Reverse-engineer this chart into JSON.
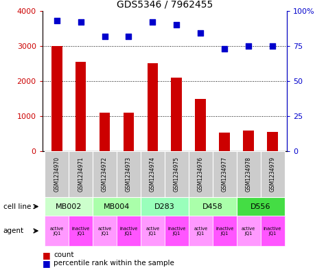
{
  "title": "GDS5346 / 7962455",
  "gsm_labels": [
    "GSM1234970",
    "GSM1234971",
    "GSM1234972",
    "GSM1234973",
    "GSM1234974",
    "GSM1234975",
    "GSM1234976",
    "GSM1234977",
    "GSM1234978",
    "GSM1234979"
  ],
  "counts": [
    3000,
    2550,
    1100,
    1100,
    2500,
    2100,
    1480,
    530,
    580,
    550
  ],
  "percentiles": [
    93,
    92,
    82,
    82,
    92,
    90,
    84,
    73,
    75,
    75
  ],
  "cell_lines": [
    {
      "label": "MB002",
      "span": [
        0,
        2
      ],
      "color": "#ccffcc"
    },
    {
      "label": "MB004",
      "span": [
        2,
        4
      ],
      "color": "#aaffaa"
    },
    {
      "label": "D283",
      "span": [
        4,
        6
      ],
      "color": "#99ffbb"
    },
    {
      "label": "D458",
      "span": [
        6,
        8
      ],
      "color": "#aaffaa"
    },
    {
      "label": "D556",
      "span": [
        8,
        10
      ],
      "color": "#44dd44"
    }
  ],
  "agents": [
    {
      "label": "active\nJQ1",
      "color": "#ff99ff"
    },
    {
      "label": "inactive\nJQ1",
      "color": "#ff55ff"
    },
    {
      "label": "active\nJQ1",
      "color": "#ff99ff"
    },
    {
      "label": "inactive\nJQ1",
      "color": "#ff55ff"
    },
    {
      "label": "active\nJQ1",
      "color": "#ff99ff"
    },
    {
      "label": "inactive\nJQ1",
      "color": "#ff55ff"
    },
    {
      "label": "active\nJQ1",
      "color": "#ff99ff"
    },
    {
      "label": "inactive\nJQ1",
      "color": "#ff55ff"
    },
    {
      "label": "active\nJQ1",
      "color": "#ff99ff"
    },
    {
      "label": "inactive\nJQ1",
      "color": "#ff55ff"
    }
  ],
  "bar_color": "#cc0000",
  "dot_color": "#0000cc",
  "ylim_left": [
    0,
    4000
  ],
  "ylim_right": [
    0,
    100
  ],
  "yticks_left": [
    0,
    1000,
    2000,
    3000,
    4000
  ],
  "yticks_right": [
    0,
    25,
    50,
    75,
    100
  ],
  "ytick_labels_left": [
    "0",
    "1000",
    "2000",
    "3000",
    "4000"
  ],
  "ytick_labels_right": [
    "0",
    "25",
    "50",
    "75",
    "100%"
  ],
  "grid_values": [
    1000,
    2000,
    3000
  ],
  "legend_count_label": "count",
  "legend_pct_label": "percentile rank within the sample",
  "cell_line_label": "cell line",
  "agent_label": "agent",
  "gsm_box_color": "#cccccc",
  "bar_width": 0.45
}
